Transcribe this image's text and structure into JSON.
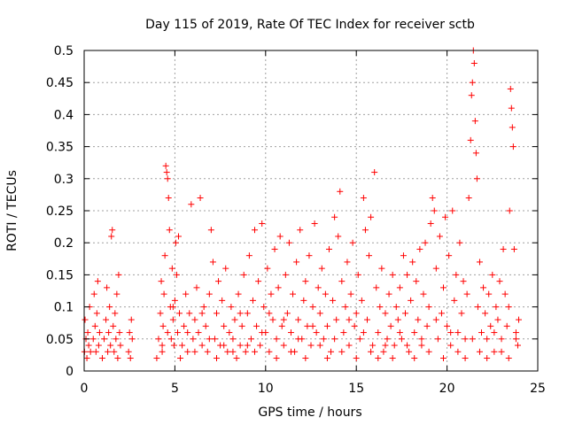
{
  "chart_data": {
    "type": "scatter",
    "title": "Day 115 of 2019, Rate Of TEC Index for receiver sctb",
    "xlabel": "GPS time / hours",
    "ylabel": "ROTI / TECUs",
    "xlim": [
      0,
      25
    ],
    "ylim": [
      0,
      0.5
    ],
    "xticks": [
      0,
      5,
      10,
      15,
      20,
      25
    ],
    "xtick_labels": [
      "0",
      "5",
      "10",
      "15",
      "20",
      "25"
    ],
    "yticks": [
      0,
      0.05,
      0.1,
      0.15,
      0.2,
      0.25,
      0.3,
      0.35,
      0.4,
      0.45,
      0.5
    ],
    "ytick_labels": [
      "0",
      "0.05",
      "0.1",
      "0.15",
      "0.2",
      "0.25",
      "0.3",
      "0.35",
      "0.4",
      "0.45",
      "0.5"
    ],
    "grid": true,
    "marker": "+",
    "marker_color": "#ff0000",
    "series": [
      {
        "name": "ROTI",
        "points": [
          [
            0.02,
            0.03
          ],
          [
            0.05,
            0.08
          ],
          [
            0.1,
            0.05
          ],
          [
            0.15,
            0.02
          ],
          [
            0.2,
            0.06
          ],
          [
            0.25,
            0.04
          ],
          [
            0.3,
            0.1
          ],
          [
            0.35,
            0.03
          ],
          [
            0.5,
            0.05
          ],
          [
            0.55,
            0.12
          ],
          [
            0.6,
            0.07
          ],
          [
            0.65,
            0.03
          ],
          [
            0.7,
            0.09
          ],
          [
            0.75,
            0.14
          ],
          [
            0.8,
            0.04
          ],
          [
            0.85,
            0.06
          ],
          [
            1.0,
            0.02
          ],
          [
            1.1,
            0.05
          ],
          [
            1.2,
            0.08
          ],
          [
            1.25,
            0.13
          ],
          [
            1.3,
            0.03
          ],
          [
            1.35,
            0.06
          ],
          [
            1.4,
            0.1
          ],
          [
            1.45,
            0.04
          ],
          [
            1.5,
            0.21
          ],
          [
            1.55,
            0.22
          ],
          [
            1.6,
            0.07
          ],
          [
            1.65,
            0.03
          ],
          [
            1.7,
            0.09
          ],
          [
            1.75,
            0.05
          ],
          [
            1.8,
            0.12
          ],
          [
            1.85,
            0.02
          ],
          [
            1.9,
            0.15
          ],
          [
            1.95,
            0.06
          ],
          [
            2.0,
            0.04
          ],
          [
            2.45,
            0.03
          ],
          [
            2.5,
            0.06
          ],
          [
            2.55,
            0.02
          ],
          [
            2.6,
            0.08
          ],
          [
            2.65,
            0.05
          ],
          [
            4.0,
            0.02
          ],
          [
            4.1,
            0.05
          ],
          [
            4.2,
            0.09
          ],
          [
            4.25,
            0.14
          ],
          [
            4.3,
            0.03
          ],
          [
            4.35,
            0.07
          ],
          [
            4.4,
            0.12
          ],
          [
            4.45,
            0.18
          ],
          [
            4.5,
            0.32
          ],
          [
            4.55,
            0.31
          ],
          [
            4.6,
            0.3
          ],
          [
            4.65,
            0.27
          ],
          [
            4.7,
            0.22
          ],
          [
            4.75,
            0.1
          ],
          [
            4.8,
            0.05
          ],
          [
            4.85,
            0.16
          ],
          [
            4.9,
            0.08
          ],
          [
            4.95,
            0.04
          ],
          [
            5.0,
            0.11
          ],
          [
            5.05,
            0.2
          ],
          [
            5.1,
            0.15
          ],
          [
            5.15,
            0.06
          ],
          [
            5.2,
            0.21
          ],
          [
            5.25,
            0.09
          ],
          [
            5.4,
            0.04
          ],
          [
            5.5,
            0.07
          ],
          [
            5.6,
            0.12
          ],
          [
            5.7,
            0.03
          ],
          [
            5.8,
            0.09
          ],
          [
            5.9,
            0.26
          ],
          [
            6.0,
            0.05
          ],
          [
            6.1,
            0.08
          ],
          [
            6.2,
            0.13
          ],
          [
            6.3,
            0.06
          ],
          [
            6.4,
            0.27
          ],
          [
            6.5,
            0.04
          ],
          [
            6.6,
            0.1
          ],
          [
            6.7,
            0.07
          ],
          [
            6.8,
            0.03
          ],
          [
            6.9,
            0.12
          ],
          [
            7.0,
            0.22
          ],
          [
            7.1,
            0.17
          ],
          [
            7.2,
            0.05
          ],
          [
            7.3,
            0.09
          ],
          [
            7.4,
            0.14
          ],
          [
            7.5,
            0.04
          ],
          [
            7.6,
            0.11
          ],
          [
            7.7,
            0.07
          ],
          [
            7.8,
            0.16
          ],
          [
            7.9,
            0.03
          ],
          [
            8.0,
            0.06
          ],
          [
            8.1,
            0.1
          ],
          [
            8.2,
            0.05
          ],
          [
            8.3,
            0.08
          ],
          [
            8.4,
            0.02
          ],
          [
            8.5,
            0.12
          ],
          [
            8.6,
            0.04
          ],
          [
            8.7,
            0.07
          ],
          [
            8.8,
            0.15
          ],
          [
            8.9,
            0.03
          ],
          [
            9.0,
            0.09
          ],
          [
            9.1,
            0.18
          ],
          [
            9.2,
            0.05
          ],
          [
            9.3,
            0.11
          ],
          [
            9.4,
            0.22
          ],
          [
            9.5,
            0.07
          ],
          [
            9.6,
            0.14
          ],
          [
            9.7,
            0.04
          ],
          [
            9.8,
            0.23
          ],
          [
            9.9,
            0.1
          ],
          [
            10.0,
            0.06
          ],
          [
            10.1,
            0.16
          ],
          [
            10.2,
            0.03
          ],
          [
            10.3,
            0.12
          ],
          [
            10.4,
            0.08
          ],
          [
            10.5,
            0.19
          ],
          [
            10.6,
            0.05
          ],
          [
            10.7,
            0.13
          ],
          [
            10.8,
            0.21
          ],
          [
            10.9,
            0.07
          ],
          [
            11.0,
            0.04
          ],
          [
            11.1,
            0.15
          ],
          [
            11.2,
            0.09
          ],
          [
            11.3,
            0.2
          ],
          [
            11.4,
            0.06
          ],
          [
            11.5,
            0.12
          ],
          [
            11.6,
            0.03
          ],
          [
            11.7,
            0.17
          ],
          [
            11.8,
            0.08
          ],
          [
            11.9,
            0.22
          ],
          [
            12.0,
            0.05
          ],
          [
            12.1,
            0.11
          ],
          [
            12.2,
            0.14
          ],
          [
            12.3,
            0.07
          ],
          [
            12.4,
            0.18
          ],
          [
            12.5,
            0.04
          ],
          [
            12.6,
            0.1
          ],
          [
            12.7,
            0.23
          ],
          [
            12.8,
            0.06
          ],
          [
            12.9,
            0.13
          ],
          [
            13.0,
            0.09
          ],
          [
            13.1,
            0.16
          ],
          [
            13.2,
            0.05
          ],
          [
            13.3,
            0.12
          ],
          [
            13.4,
            0.07
          ],
          [
            13.5,
            0.19
          ],
          [
            13.6,
            0.03
          ],
          [
            13.7,
            0.11
          ],
          [
            13.8,
            0.24
          ],
          [
            13.9,
            0.08
          ],
          [
            14.0,
            0.21
          ],
          [
            14.1,
            0.28
          ],
          [
            14.2,
            0.14
          ],
          [
            14.3,
            0.06
          ],
          [
            14.4,
            0.1
          ],
          [
            14.5,
            0.17
          ],
          [
            14.6,
            0.04
          ],
          [
            14.7,
            0.12
          ],
          [
            14.8,
            0.2
          ],
          [
            14.9,
            0.07
          ],
          [
            15.0,
            0.09
          ],
          [
            15.1,
            0.15
          ],
          [
            15.2,
            0.05
          ],
          [
            15.3,
            0.11
          ],
          [
            15.4,
            0.27
          ],
          [
            15.5,
            0.22
          ],
          [
            15.6,
            0.08
          ],
          [
            15.7,
            0.18
          ],
          [
            15.8,
            0.24
          ],
          [
            15.9,
            0.04
          ],
          [
            16.0,
            0.31
          ],
          [
            16.1,
            0.13
          ],
          [
            16.2,
            0.06
          ],
          [
            16.3,
            0.1
          ],
          [
            16.4,
            0.16
          ],
          [
            16.5,
            0.03
          ],
          [
            16.6,
            0.09
          ],
          [
            16.7,
            0.05
          ],
          [
            16.8,
            0.12
          ],
          [
            16.9,
            0.07
          ],
          [
            17.0,
            0.15
          ],
          [
            17.1,
            0.04
          ],
          [
            17.2,
            0.1
          ],
          [
            17.3,
            0.08
          ],
          [
            17.4,
            0.13
          ],
          [
            17.5,
            0.05
          ],
          [
            17.6,
            0.18
          ],
          [
            17.7,
            0.09
          ],
          [
            17.8,
            0.15
          ],
          [
            17.9,
            0.03
          ],
          [
            18.0,
            0.11
          ],
          [
            18.1,
            0.17
          ],
          [
            18.2,
            0.06
          ],
          [
            18.3,
            0.14
          ],
          [
            18.4,
            0.08
          ],
          [
            18.5,
            0.19
          ],
          [
            18.6,
            0.04
          ],
          [
            18.7,
            0.12
          ],
          [
            18.8,
            0.2
          ],
          [
            18.9,
            0.07
          ],
          [
            19.0,
            0.1
          ],
          [
            19.1,
            0.23
          ],
          [
            19.2,
            0.27
          ],
          [
            19.3,
            0.25
          ],
          [
            19.4,
            0.16
          ],
          [
            19.5,
            0.05
          ],
          [
            19.6,
            0.21
          ],
          [
            19.7,
            0.09
          ],
          [
            19.8,
            0.13
          ],
          [
            19.9,
            0.24
          ],
          [
            20.0,
            0.07
          ],
          [
            20.1,
            0.18
          ],
          [
            20.2,
            0.04
          ],
          [
            20.3,
            0.25
          ],
          [
            20.4,
            0.11
          ],
          [
            20.5,
            0.15
          ],
          [
            20.6,
            0.06
          ],
          [
            20.7,
            0.2
          ],
          [
            20.8,
            0.09
          ],
          [
            20.9,
            0.14
          ],
          [
            21.0,
            0.05
          ],
          [
            21.1,
            0.12
          ],
          [
            21.2,
            0.27
          ],
          [
            21.3,
            0.36
          ],
          [
            21.35,
            0.43
          ],
          [
            21.4,
            0.45
          ],
          [
            21.45,
            0.5
          ],
          [
            21.5,
            0.48
          ],
          [
            21.55,
            0.39
          ],
          [
            21.6,
            0.34
          ],
          [
            21.65,
            0.3
          ],
          [
            21.7,
            0.1
          ],
          [
            21.8,
            0.17
          ],
          [
            21.9,
            0.06
          ],
          [
            22.0,
            0.13
          ],
          [
            22.1,
            0.09
          ],
          [
            22.2,
            0.05
          ],
          [
            22.3,
            0.12
          ],
          [
            22.4,
            0.07
          ],
          [
            22.5,
            0.15
          ],
          [
            22.6,
            0.03
          ],
          [
            22.7,
            0.1
          ],
          [
            22.8,
            0.08
          ],
          [
            22.9,
            0.14
          ],
          [
            23.0,
            0.05
          ],
          [
            23.1,
            0.19
          ],
          [
            23.2,
            0.12
          ],
          [
            23.3,
            0.07
          ],
          [
            23.4,
            0.1
          ],
          [
            23.45,
            0.25
          ],
          [
            23.5,
            0.44
          ],
          [
            23.55,
            0.41
          ],
          [
            23.6,
            0.38
          ],
          [
            23.65,
            0.35
          ],
          [
            23.7,
            0.19
          ],
          [
            23.8,
            0.06
          ],
          [
            23.9,
            0.04
          ],
          [
            23.95,
            0.08
          ],
          [
            4.3,
            0.04
          ],
          [
            4.6,
            0.06
          ],
          [
            4.9,
            0.1
          ],
          [
            5.3,
            0.02
          ],
          [
            5.7,
            0.06
          ],
          [
            6.1,
            0.03
          ],
          [
            6.5,
            0.09
          ],
          [
            6.9,
            0.05
          ],
          [
            7.3,
            0.02
          ],
          [
            7.7,
            0.04
          ],
          [
            8.2,
            0.03
          ],
          [
            8.6,
            0.09
          ],
          [
            9.0,
            0.04
          ],
          [
            9.4,
            0.03
          ],
          [
            9.8,
            0.06
          ],
          [
            10.2,
            0.09
          ],
          [
            10.6,
            0.02
          ],
          [
            11.0,
            0.08
          ],
          [
            11.4,
            0.03
          ],
          [
            11.8,
            0.05
          ],
          [
            12.2,
            0.02
          ],
          [
            12.6,
            0.07
          ],
          [
            13.0,
            0.04
          ],
          [
            13.4,
            0.02
          ],
          [
            13.8,
            0.05
          ],
          [
            14.2,
            0.03
          ],
          [
            14.6,
            0.08
          ],
          [
            15.0,
            0.02
          ],
          [
            15.4,
            0.06
          ],
          [
            15.8,
            0.03
          ],
          [
            16.2,
            0.02
          ],
          [
            16.6,
            0.04
          ],
          [
            17.0,
            0.02
          ],
          [
            17.4,
            0.06
          ],
          [
            17.8,
            0.04
          ],
          [
            18.2,
            0.02
          ],
          [
            18.6,
            0.05
          ],
          [
            19.0,
            0.03
          ],
          [
            19.4,
            0.08
          ],
          [
            19.8,
            0.02
          ],
          [
            20.2,
            0.06
          ],
          [
            20.6,
            0.03
          ],
          [
            21.0,
            0.02
          ],
          [
            21.4,
            0.05
          ],
          [
            21.8,
            0.03
          ],
          [
            22.2,
            0.02
          ],
          [
            22.6,
            0.06
          ],
          [
            23.0,
            0.03
          ],
          [
            23.4,
            0.02
          ],
          [
            23.8,
            0.05
          ]
        ]
      }
    ]
  }
}
